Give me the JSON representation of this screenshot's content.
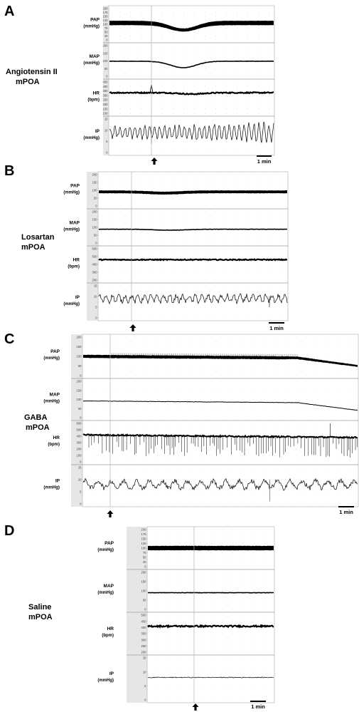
{
  "panels": [
    {
      "id": "A",
      "letter": "A",
      "caption": [
        "Angiotensin II",
        "mPOA"
      ],
      "time_label": "1 min",
      "tracks": [
        {
          "key": "pap",
          "name": "PAP",
          "unit": "(mmHg)",
          "ticks": [
            "0",
            "25",
            "50",
            "75",
            "100",
            "125",
            "150",
            "175",
            "200"
          ]
        },
        {
          "key": "map",
          "name": "MAP",
          "unit": "(mmHg)",
          "ticks": [
            "0",
            "50",
            "100",
            "150",
            "200"
          ]
        },
        {
          "key": "hr",
          "name": "HR",
          "unit": "(bpm)",
          "ticks": [
            "100",
            "150",
            "200",
            "250",
            "300",
            "350",
            "400",
            "450"
          ]
        },
        {
          "key": "ip",
          "name": "IP",
          "unit": "(mmHg)",
          "ticks": [
            "0",
            "5",
            "10",
            "15"
          ]
        }
      ]
    },
    {
      "id": "B",
      "letter": "B",
      "caption": [
        "Losartan",
        "mPOA"
      ],
      "time_label": "1 min",
      "tracks": [
        {
          "key": "pap",
          "name": "PAP",
          "unit": "(mmHg)",
          "ticks": [
            "0",
            "50",
            "100",
            "150",
            "200"
          ]
        },
        {
          "key": "map",
          "name": "MAP",
          "unit": "(mmHg)",
          "ticks": [
            "0",
            "50",
            "100",
            "150",
            "200"
          ]
        },
        {
          "key": "hr",
          "name": "HR",
          "unit": "(bpm)",
          "ticks": [
            "200",
            "300",
            "400",
            "500",
            "600"
          ]
        },
        {
          "key": "ip",
          "name": "IP",
          "unit": "(mmHg)",
          "ticks": [
            "0",
            "5",
            "10",
            "15"
          ]
        }
      ]
    },
    {
      "id": "C",
      "letter": "C",
      "caption": [
        "GABA",
        "mPOA"
      ],
      "time_label": "1 min",
      "tracks": [
        {
          "key": "pap",
          "name": "PAP",
          "unit": "(mmHg)",
          "ticks": [
            "0",
            "50",
            "100",
            "150",
            "200"
          ]
        },
        {
          "key": "map",
          "name": "MAP",
          "unit": "(mmHg)",
          "ticks": [
            "0",
            "50",
            "100",
            "150",
            "200"
          ]
        },
        {
          "key": "hr",
          "name": "HR",
          "unit": "(bpm)",
          "ticks": [
            "0",
            "100",
            "200",
            "300",
            "400",
            "500",
            "600"
          ]
        },
        {
          "key": "ip",
          "name": "IP",
          "unit": "(mmHg)",
          "ticks": [
            "0",
            "5",
            "10",
            "15"
          ]
        }
      ]
    },
    {
      "id": "D",
      "letter": "D",
      "caption": [
        "Saline",
        "mPOA"
      ],
      "time_label": "1 min",
      "tracks": [
        {
          "key": "pap",
          "name": "PAP",
          "unit": "(mmHg)",
          "ticks": [
            "0",
            "25",
            "50",
            "75",
            "100",
            "125",
            "150",
            "175",
            "200"
          ]
        },
        {
          "key": "map",
          "name": "MAP",
          "unit": "(mmHg)",
          "ticks": [
            "0",
            "50",
            "100",
            "150",
            "200"
          ]
        },
        {
          "key": "hr",
          "name": "HR",
          "unit": "(bpm)",
          "ticks": [
            "200",
            "250",
            "300",
            "350",
            "400",
            "450",
            "500"
          ]
        },
        {
          "key": "ip",
          "name": "IP",
          "unit": "(mmHg)",
          "ticks": [
            "0",
            "5",
            "10",
            "15"
          ]
        }
      ]
    }
  ]
}
